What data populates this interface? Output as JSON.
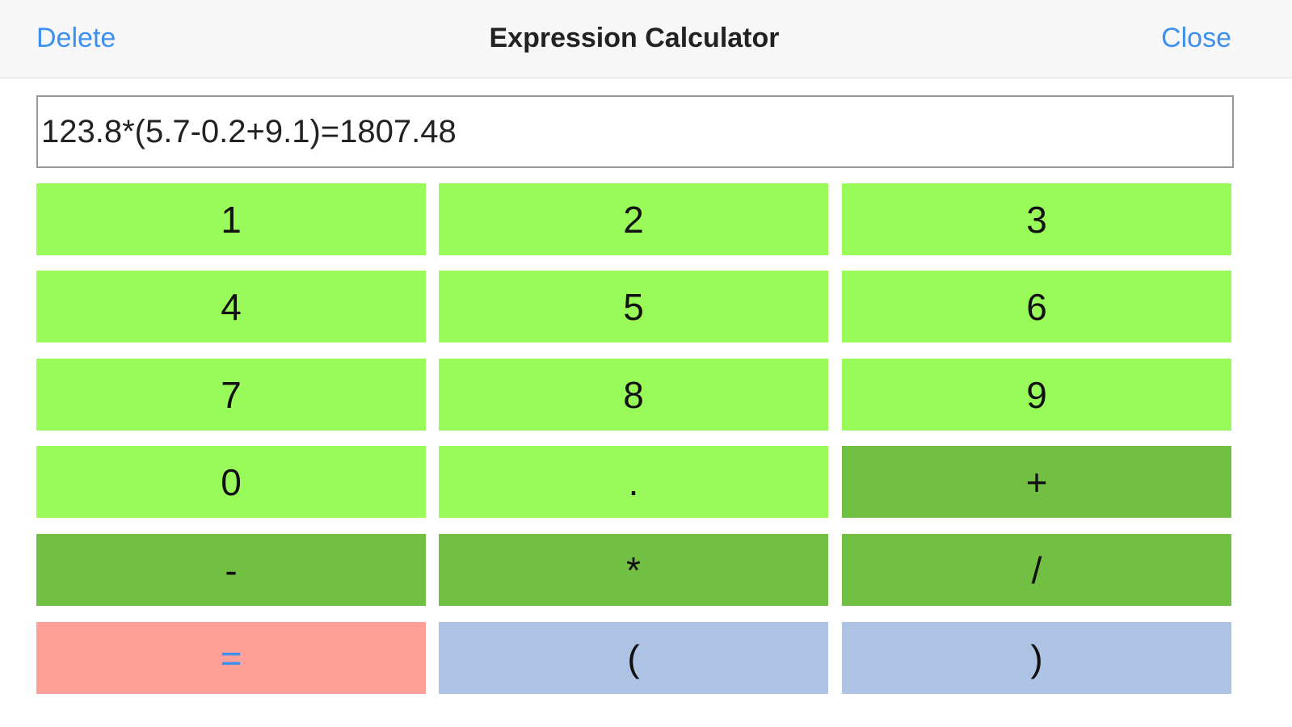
{
  "header": {
    "left_button": "Delete",
    "title": "Expression Calculator",
    "right_button": "Close"
  },
  "display": {
    "text": "123.8*(5.7-0.2+9.1)=1807.48"
  },
  "keypad": {
    "rows": [
      [
        "1",
        "2",
        "3"
      ],
      [
        "4",
        "5",
        "6"
      ],
      [
        "7",
        "8",
        "9"
      ],
      [
        "0",
        ".",
        "+"
      ],
      [
        "-",
        "*",
        "/"
      ],
      [
        "=",
        "(",
        ")"
      ]
    ]
  }
}
